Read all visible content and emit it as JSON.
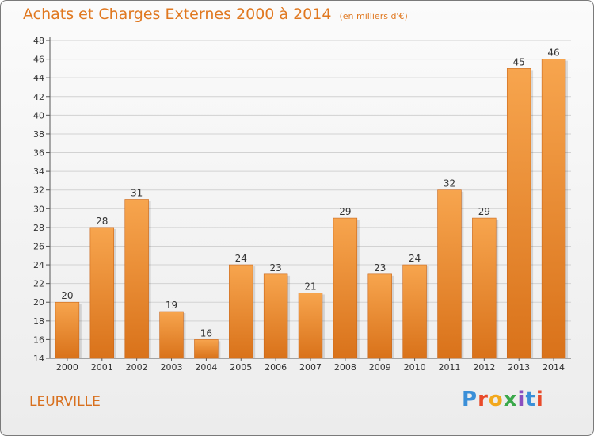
{
  "header": {
    "title": "Achats et Charges Externes 2000 à 2014",
    "unit": "(en milliers d'€)"
  },
  "footer": {
    "location": "LEURVILLE",
    "logo": "Proxiti"
  },
  "colors": {
    "bar_light": "#f7a54e",
    "bar_dark": "#d9721a",
    "title": "#e07820",
    "grid": "#d2d2d2"
  },
  "chart_data": {
    "type": "bar",
    "title": "Achats et Charges Externes 2000 à 2014",
    "subtitle": "(en milliers d'€)",
    "xlabel": "",
    "ylabel": "",
    "categories": [
      "2000",
      "2001",
      "2002",
      "2003",
      "2004",
      "2005",
      "2006",
      "2007",
      "2008",
      "2009",
      "2010",
      "2011",
      "2012",
      "2013",
      "2014"
    ],
    "values": [
      20,
      28,
      31,
      19,
      16,
      24,
      23,
      21,
      29,
      23,
      24,
      32,
      29,
      45,
      46
    ],
    "ylim": [
      14,
      48
    ],
    "yticks": [
      14,
      16,
      18,
      20,
      22,
      24,
      26,
      28,
      30,
      32,
      34,
      36,
      38,
      40,
      42,
      44,
      46,
      48
    ],
    "grid": true,
    "data_labels": true
  }
}
